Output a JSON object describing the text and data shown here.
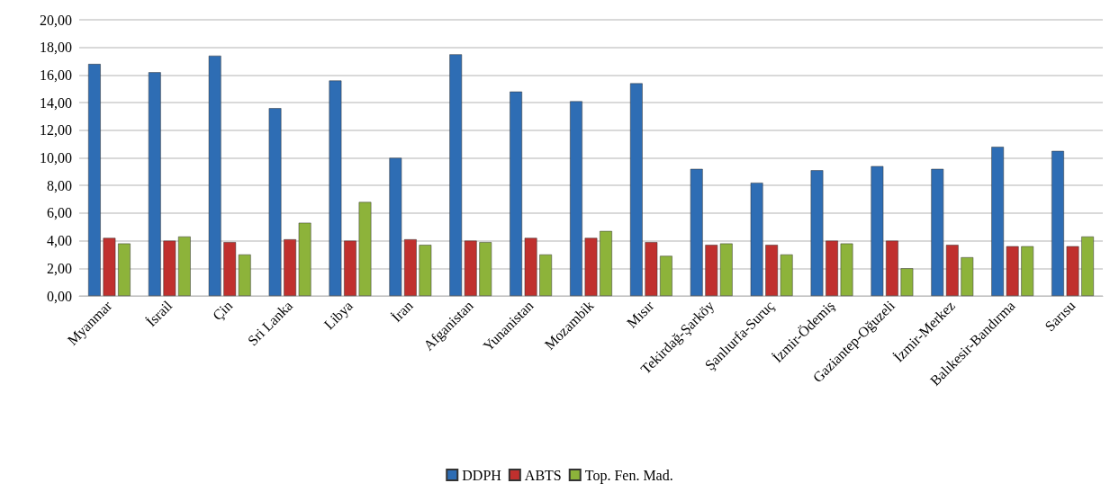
{
  "chart_data": {
    "type": "bar",
    "categories": [
      "Myanmar",
      "İsrail",
      "Çin",
      "Sri Lanka",
      "Libya",
      "İran",
      "Afganistan",
      "Yunanistan",
      "Mozambik",
      "Mısır",
      "Tekirdağ-Şarköy",
      "Şanlıurfa-Suruç",
      "İzmir-Ödemiş",
      "Gaziantep-Oğuzeli",
      "İzmir-Merkez",
      "Balıkesir-Bandırma",
      "Sarısu"
    ],
    "series": [
      {
        "name": "DDPH",
        "color": "#2e6db4",
        "values": [
          16.8,
          16.2,
          17.4,
          13.6,
          15.6,
          10.0,
          17.5,
          14.8,
          14.1,
          15.4,
          9.2,
          8.2,
          9.1,
          9.4,
          9.2,
          10.8,
          10.5
        ]
      },
      {
        "name": "ABTS",
        "color": "#c0302e",
        "values": [
          4.2,
          4.0,
          3.9,
          4.1,
          4.0,
          4.1,
          4.0,
          4.2,
          4.2,
          3.9,
          3.7,
          3.7,
          4.0,
          4.0,
          3.7,
          3.6,
          3.6
        ]
      },
      {
        "name": "Top. Fen. Mad.",
        "color": "#8db33a",
        "values": [
          3.8,
          4.3,
          3.0,
          5.3,
          6.8,
          3.7,
          3.9,
          3.0,
          4.7,
          2.9,
          3.8,
          3.0,
          3.8,
          2.0,
          2.8,
          3.6,
          4.3
        ]
      }
    ],
    "ylim": [
      0,
      20
    ],
    "yticks": [
      {
        "value": 0,
        "label": "0,00"
      },
      {
        "value": 2,
        "label": "2,00"
      },
      {
        "value": 4,
        "label": "4,00"
      },
      {
        "value": 6,
        "label": "6,00"
      },
      {
        "value": 8,
        "label": "8,00"
      },
      {
        "value": 10,
        "label": "10,00"
      },
      {
        "value": 12,
        "label": "12,00"
      },
      {
        "value": 14,
        "label": "14,00"
      },
      {
        "value": 16,
        "label": "16,00"
      },
      {
        "value": 18,
        "label": "18,00"
      },
      {
        "value": 20,
        "label": "20,00"
      }
    ],
    "grid": "y",
    "legend": "bottom"
  }
}
